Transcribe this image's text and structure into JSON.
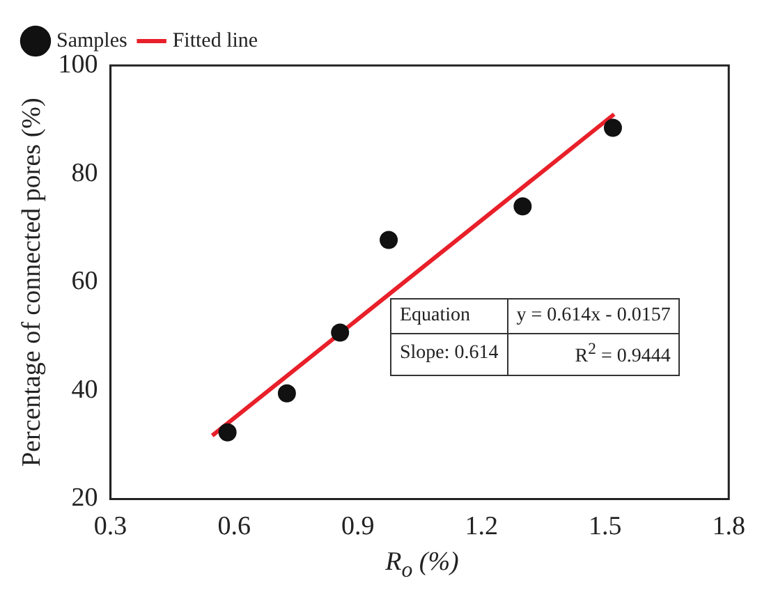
{
  "chart_data": {
    "type": "scatter",
    "xlabel": "R$_{o}$ (%)",
    "ylabel": "Percentage of connected pores (%)",
    "xlim": [
      0.3,
      1.8
    ],
    "xticks": [
      0.3,
      0.6,
      0.9,
      1.2,
      1.5,
      1.8
    ],
    "ylim": [
      20,
      100
    ],
    "yticks": [
      20,
      40,
      60,
      80,
      100
    ],
    "grid": false,
    "legend": "top left",
    "marker": "circle",
    "series": [
      {
        "name": "Samples",
        "type": "scatter",
        "color": "#111111",
        "x": [
          0.584,
          0.728,
          0.857,
          0.975,
          1.3,
          1.519
        ],
        "values": [
          32.3,
          39.5,
          50.7,
          67.8,
          74.0,
          88.5
        ]
      },
      {
        "name": "Fitted line",
        "type": "line",
        "color": "#e8202a",
        "x": [
          0.547,
          1.522
        ],
        "values": [
          31.7,
          91.0
        ],
        "line_style": "solid",
        "marker": "none"
      }
    ],
    "annotations": [
      "Equation",
      "y = 0.614x - 0.0157",
      "Slope: 0.614",
      "R$^{2}$ = 0.9444"
    ]
  }
}
